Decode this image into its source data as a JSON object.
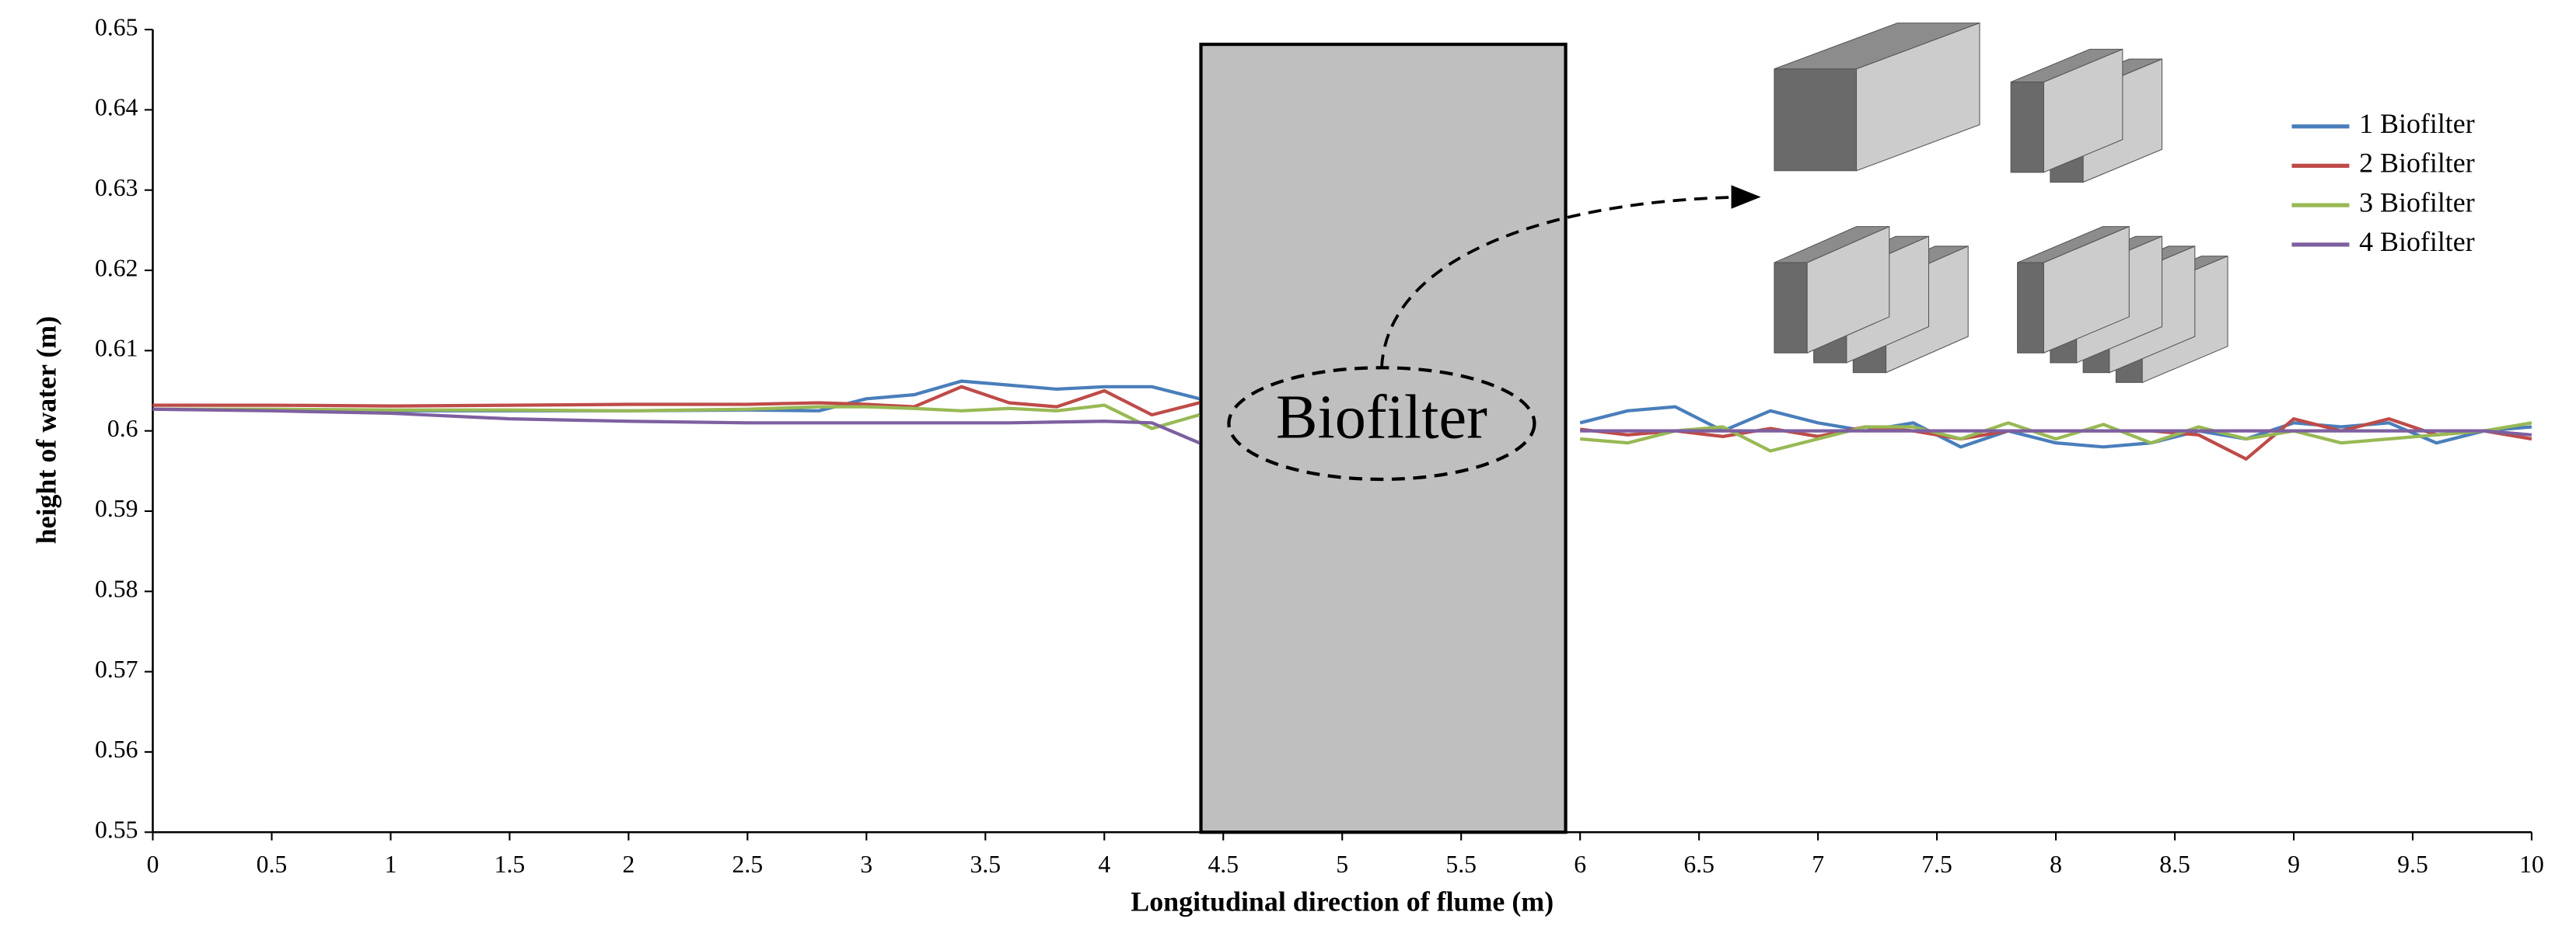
{
  "chart_data": {
    "type": "line",
    "x_label": "Longitudinal direction of flume (m)",
    "y_label": "height of water (m)",
    "annotation": "Biofilter",
    "xlim": [
      0,
      10
    ],
    "ylim": [
      0.55,
      0.65
    ],
    "xticks": [
      0,
      0.5,
      1,
      1.5,
      2,
      2.5,
      3,
      3.5,
      4,
      4.5,
      5,
      5.5,
      6,
      6.5,
      7,
      7.5,
      8,
      8.5,
      9,
      9.5,
      10
    ],
    "yticks": [
      0.55,
      0.56,
      0.57,
      0.58,
      0.59,
      0.6,
      0.61,
      0.62,
      0.63,
      0.64,
      0.65
    ],
    "legend": "upper right",
    "x": [
      0,
      0.5,
      1,
      1.5,
      2,
      2.5,
      2.8,
      3,
      3.2,
      3.4,
      3.6,
      3.8,
      4,
      4.2,
      4.4,
      5,
      6,
      6.2,
      6.4,
      6.6,
      6.8,
      7,
      7.2,
      7.4,
      7.6,
      7.8,
      8,
      8.2,
      8.4,
      8.6,
      8.8,
      9,
      9.2,
      9.4,
      9.6,
      9.8,
      10
    ],
    "series": [
      {
        "name": "1 Biofilter",
        "color": "#4a7ebb",
        "values": [
          0.6027,
          0.6026,
          0.6025,
          0.6025,
          0.6025,
          0.6026,
          0.6025,
          0.604,
          0.6045,
          0.6062,
          0.6057,
          0.6052,
          0.6055,
          0.6055,
          0.604,
          null,
          0.601,
          0.6025,
          0.603,
          0.6,
          0.6025,
          0.601,
          0.6,
          0.601,
          0.598,
          0.6,
          0.5985,
          0.598,
          0.5985,
          0.6,
          0.599,
          0.601,
          0.6005,
          0.601,
          0.5985,
          0.6,
          0.6005
        ]
      },
      {
        "name": "2 Biofilter",
        "color": "#be4b48",
        "values": [
          0.6032,
          0.6032,
          0.6031,
          0.6032,
          0.6033,
          0.6033,
          0.6035,
          0.6033,
          0.603,
          0.6055,
          0.6035,
          0.603,
          0.605,
          0.602,
          0.6035,
          null,
          0.6002,
          0.5995,
          0.6,
          0.5993,
          0.6003,
          0.5993,
          0.6005,
          0.6,
          0.599,
          0.6,
          0.6,
          0.6,
          0.6,
          0.5995,
          0.5965,
          0.6015,
          0.6,
          0.6015,
          0.5995,
          0.6,
          0.599
        ]
      },
      {
        "name": "3 Biofilter",
        "color": "#98b954",
        "values": [
          0.6027,
          0.6027,
          0.6026,
          0.6026,
          0.6025,
          0.6027,
          0.603,
          0.603,
          0.6028,
          0.6025,
          0.6028,
          0.6025,
          0.6032,
          0.6003,
          0.602,
          null,
          0.599,
          0.5985,
          0.6,
          0.6005,
          0.5975,
          0.599,
          0.6005,
          0.6005,
          0.599,
          0.601,
          0.599,
          0.6008,
          0.5985,
          0.6005,
          0.599,
          0.6,
          0.5985,
          0.599,
          0.5995,
          0.6,
          0.601
        ]
      },
      {
        "name": "4 Biofilter",
        "color": "#7d60a0",
        "values": [
          0.6027,
          0.6025,
          0.6022,
          0.6015,
          0.6012,
          0.601,
          0.601,
          0.601,
          0.601,
          0.601,
          0.601,
          0.6011,
          0.6012,
          0.601,
          0.5985,
          null,
          0.6,
          0.6,
          0.6,
          0.6,
          0.6,
          0.6,
          0.6,
          0.6,
          0.6,
          0.6,
          0.6,
          0.6,
          0.6,
          0.6,
          0.6,
          0.6,
          0.6,
          0.6,
          0.6,
          0.6,
          0.5995
        ]
      }
    ]
  }
}
